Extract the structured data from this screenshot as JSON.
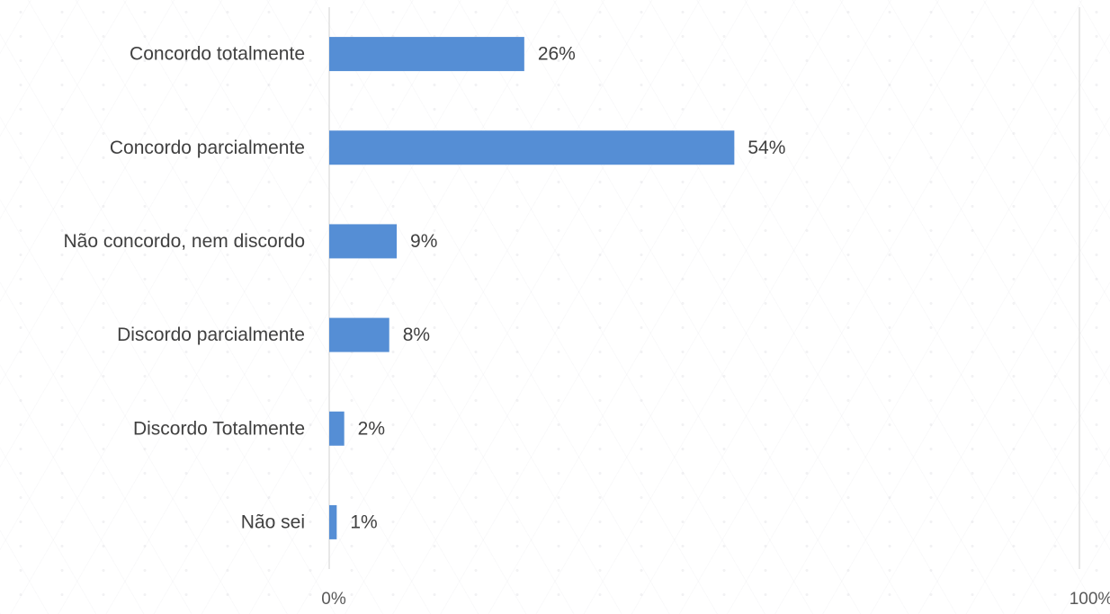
{
  "chart_data": {
    "type": "bar",
    "orientation": "horizontal",
    "categories": [
      "Concordo totalmente",
      "Concordo parcialmente",
      "Não concordo, nem discordo",
      "Discordo parcialmente",
      "Discordo Totalmente",
      "Não sei"
    ],
    "values": [
      26,
      54,
      9,
      8,
      2,
      1
    ],
    "data_labels": [
      "26%",
      "54%",
      "9%",
      "8%",
      "2%",
      "1%"
    ],
    "xlim": [
      0,
      100
    ],
    "x_ticks": [
      "0%",
      "100%"
    ],
    "grid": true,
    "bar_color": "#558ED5",
    "gridline_color": "#D9D9D9"
  }
}
